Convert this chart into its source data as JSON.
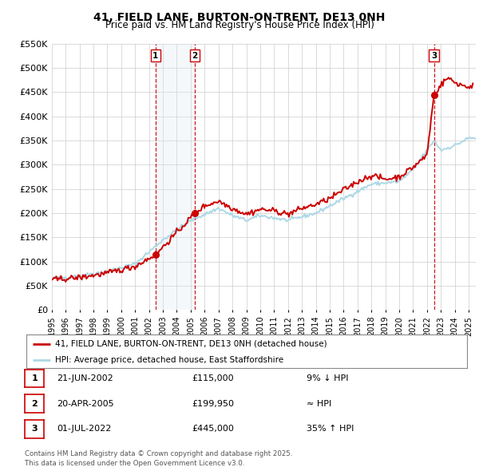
{
  "title": "41, FIELD LANE, BURTON-ON-TRENT, DE13 0NH",
  "subtitle": "Price paid vs. HM Land Registry's House Price Index (HPI)",
  "ylim": [
    0,
    550000
  ],
  "xlim_start": 1995.0,
  "xlim_end": 2025.5,
  "yticks": [
    0,
    50000,
    100000,
    150000,
    200000,
    250000,
    300000,
    350000,
    400000,
    450000,
    500000,
    550000
  ],
  "ytick_labels": [
    "£0",
    "£50K",
    "£100K",
    "£150K",
    "£200K",
    "£250K",
    "£300K",
    "£350K",
    "£400K",
    "£450K",
    "£500K",
    "£550K"
  ],
  "hpi_color": "#add8e6",
  "price_color": "#cc0000",
  "vline_color": "#cc0000",
  "shade_color": "#dce9f5",
  "transactions": [
    {
      "date": 2002.47,
      "price": 115000,
      "label": "1"
    },
    {
      "date": 2005.3,
      "price": 199950,
      "label": "2"
    },
    {
      "date": 2022.5,
      "price": 445000,
      "label": "3"
    }
  ],
  "legend_line1": "41, FIELD LANE, BURTON-ON-TRENT, DE13 0NH (detached house)",
  "legend_line2": "HPI: Average price, detached house, East Staffordshire",
  "table_rows": [
    {
      "num": "1",
      "date": "21-JUN-2002",
      "price": "£115,000",
      "hpi_note": "9% ↓ HPI"
    },
    {
      "num": "2",
      "date": "20-APR-2005",
      "price": "£199,950",
      "hpi_note": "≈ HPI"
    },
    {
      "num": "3",
      "date": "01-JUL-2022",
      "price": "£445,000",
      "hpi_note": "35% ↑ HPI"
    }
  ],
  "footnote": "Contains HM Land Registry data © Crown copyright and database right 2025.\nThis data is licensed under the Open Government Licence v3.0.",
  "background_color": "#ffffff",
  "plot_bg_color": "#ffffff",
  "grid_color": "#cccccc"
}
